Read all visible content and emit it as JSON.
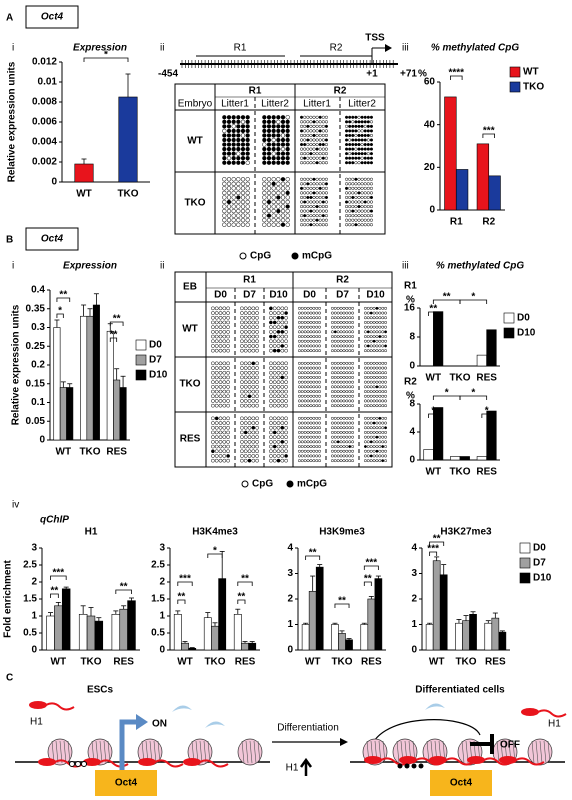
{
  "panel_labels": [
    "A",
    "B",
    "C"
  ],
  "subpanel_labels": [
    "i",
    "ii",
    "iii",
    "iv"
  ],
  "gene": "Oct4",
  "gene_map": {
    "regions": [
      "R1",
      "R2"
    ],
    "tss": "TSS",
    "start": "-454",
    "tss_pos": "+1",
    "end": "+71"
  },
  "table_a": {
    "corner": "Embryo",
    "regions": [
      "R1",
      "R2"
    ],
    "litters": [
      "Litter1",
      "Litter2"
    ],
    "rows": [
      "WT",
      "TKO"
    ]
  },
  "table_b": {
    "corner": "EB",
    "regions": [
      "R1",
      "R2"
    ],
    "days": [
      "D0",
      "D7",
      "D10"
    ],
    "rows": [
      "WT",
      "TKO",
      "RES"
    ]
  },
  "dot_legend": [
    "CpG",
    "mCpG"
  ],
  "qchip_title": "qChIP",
  "diagram": {
    "left_title": "ESCs",
    "right_title": "Differentiated cells",
    "h1": "H1",
    "on": "ON",
    "off": "OFF",
    "arrow": "Differentiation",
    "gene": "Oct4"
  },
  "chart_data": [
    {
      "type": "bar",
      "title": "Expression",
      "y_label": "Relative expression units",
      "categories": [
        "WT",
        "TKO"
      ],
      "values": [
        0.0018,
        0.0085
      ],
      "errors": [
        0.0005,
        0.0023
      ],
      "colors": [
        "#e8141c",
        "#1a3a9c"
      ],
      "ylim": [
        0,
        0.012
      ],
      "yticks": [
        0,
        0.002,
        0.004,
        0.006,
        0.008,
        0.01,
        0.012
      ],
      "annotations": [
        "*"
      ]
    },
    {
      "type": "bar",
      "title": "% methylated CpG",
      "y_label": "%",
      "categories": [
        "R1",
        "R2"
      ],
      "series": [
        {
          "name": "WT",
          "color": "#e8141c",
          "values": [
            53,
            31
          ]
        },
        {
          "name": "TKO",
          "color": "#1a3a9c",
          "values": [
            19,
            16
          ]
        }
      ],
      "ylim": [
        0,
        60
      ],
      "yticks": [
        0,
        20,
        40,
        60
      ],
      "annotations": [
        "****",
        "***"
      ],
      "legend": "right"
    },
    {
      "type": "bar",
      "title": "Expression",
      "y_label": "Relative expression units",
      "categories": [
        "WT",
        "TKO",
        "RES"
      ],
      "series": [
        {
          "name": "D0",
          "color": "#ffffff",
          "values": [
            0.3,
            0.33,
            0.29
          ],
          "errors": [
            0.02,
            0.03,
            0.02
          ]
        },
        {
          "name": "D7",
          "color": "#a0a0a0",
          "values": [
            0.14,
            0.33,
            0.16
          ],
          "errors": [
            0.015,
            0.02,
            0.03
          ]
        },
        {
          "name": "D10",
          "color": "#000000",
          "values": [
            0.14,
            0.36,
            0.14
          ],
          "errors": [
            0.01,
            0.03,
            0.03
          ]
        }
      ],
      "ylim": [
        0,
        0.4
      ],
      "yticks": [
        0,
        0.05,
        0.1,
        0.15,
        0.2,
        0.25,
        0.3,
        0.35,
        0.4
      ],
      "annotations": [
        "**",
        "*",
        "**",
        "**"
      ],
      "legend": "right"
    },
    {
      "type": "bar",
      "title": "% methylated CpG",
      "subtitle": "R1",
      "y_label": "%",
      "categories": [
        "WT",
        "TKO",
        "RES"
      ],
      "series": [
        {
          "name": "D0",
          "color": "#ffffff",
          "values": [
            0,
            0,
            3
          ]
        },
        {
          "name": "D10",
          "color": "#000000",
          "values": [
            15,
            0,
            10
          ]
        }
      ],
      "ylim": [
        0,
        16
      ],
      "yticks": [
        0,
        8,
        16
      ],
      "annotations": [
        "**",
        "**",
        "*"
      ],
      "legend": "right"
    },
    {
      "type": "bar",
      "subtitle": "R2",
      "y_label": "%",
      "categories": [
        "WT",
        "TKO",
        "RES"
      ],
      "series": [
        {
          "color": "#ffffff",
          "values": [
            1.5,
            0.5,
            0.5
          ]
        },
        {
          "color": "#000000",
          "values": [
            7.5,
            0.5,
            7
          ]
        }
      ],
      "ylim": [
        0,
        8
      ],
      "yticks": [
        0,
        4,
        8
      ],
      "annotations": [
        "*",
        "*",
        "*",
        "*"
      ]
    },
    {
      "type": "bar",
      "title": "H1",
      "y_label": "Fold enrichment",
      "categories": [
        "WT",
        "TKO",
        "RES"
      ],
      "series": [
        {
          "color": "#ffffff",
          "values": [
            1,
            1.05,
            1.05
          ],
          "errors": [
            0.1,
            0.25,
            0.1
          ]
        },
        {
          "color": "#a0a0a0",
          "values": [
            1.3,
            1.0,
            1.2
          ],
          "errors": [
            0.1,
            0.25,
            0.1
          ]
        },
        {
          "color": "#000000",
          "values": [
            1.8,
            0.85,
            1.45
          ],
          "errors": [
            0.05,
            0.1,
            0.08
          ]
        }
      ],
      "ylim": [
        0,
        3
      ],
      "yticks": [
        0,
        0.5,
        1,
        1.5,
        2,
        2.5,
        3
      ],
      "annotations": [
        "***",
        "**",
        "**"
      ]
    },
    {
      "type": "bar",
      "title": "H3K4me3",
      "categories": [
        "WT",
        "TKO",
        "RES"
      ],
      "series": [
        {
          "color": "#ffffff",
          "values": [
            1.05,
            0.95,
            1.05
          ],
          "errors": [
            0.1,
            0.15,
            0.15
          ]
        },
        {
          "color": "#a0a0a0",
          "values": [
            0.2,
            0.7,
            0.2
          ],
          "errors": [
            0.05,
            0.1,
            0.05
          ]
        },
        {
          "color": "#000000",
          "values": [
            0.05,
            2.1,
            0.2
          ],
          "errors": [
            0.02,
            0.8,
            0.05
          ]
        }
      ],
      "ylim": [
        0,
        3
      ],
      "yticks": [
        0,
        0.5,
        1,
        1.5,
        2,
        2.5,
        3
      ],
      "annotations": [
        "***",
        "**",
        "*",
        "**",
        "**"
      ]
    },
    {
      "type": "bar",
      "title": "H3K9me3",
      "categories": [
        "WT",
        "TKO",
        "RES"
      ],
      "series": [
        {
          "color": "#ffffff",
          "values": [
            1,
            1,
            1
          ],
          "errors": [
            0.05,
            0.05,
            0.05
          ]
        },
        {
          "color": "#a0a0a0",
          "values": [
            2.3,
            0.65,
            2.0
          ],
          "errors": [
            0.6,
            0.1,
            0.1
          ]
        },
        {
          "color": "#000000",
          "values": [
            3.25,
            0.4,
            2.8
          ],
          "errors": [
            0.1,
            0.05,
            0.1
          ]
        }
      ],
      "ylim": [
        0,
        4
      ],
      "yticks": [
        0,
        1,
        2,
        3,
        4
      ],
      "annotations": [
        "**",
        "**",
        "***",
        "**"
      ]
    },
    {
      "type": "bar",
      "title": "H3K27me3",
      "categories": [
        "WT",
        "TKO",
        "RES"
      ],
      "series": [
        {
          "name": "D0",
          "color": "#ffffff",
          "values": [
            1,
            1.05,
            1.05
          ],
          "errors": [
            0.05,
            0.15,
            0.1
          ]
        },
        {
          "name": "D7",
          "color": "#a0a0a0",
          "values": [
            3.5,
            1.15,
            1.25
          ],
          "errors": [
            0.15,
            0.2,
            0.2
          ]
        },
        {
          "name": "D10",
          "color": "#000000",
          "values": [
            2.95,
            1.4,
            0.7
          ],
          "errors": [
            0.4,
            0.1,
            0.05
          ]
        }
      ],
      "ylim": [
        0,
        4
      ],
      "yticks": [
        0,
        1,
        2,
        3,
        4
      ],
      "annotations": [
        "**",
        "***"
      ],
      "legend": "right"
    }
  ]
}
